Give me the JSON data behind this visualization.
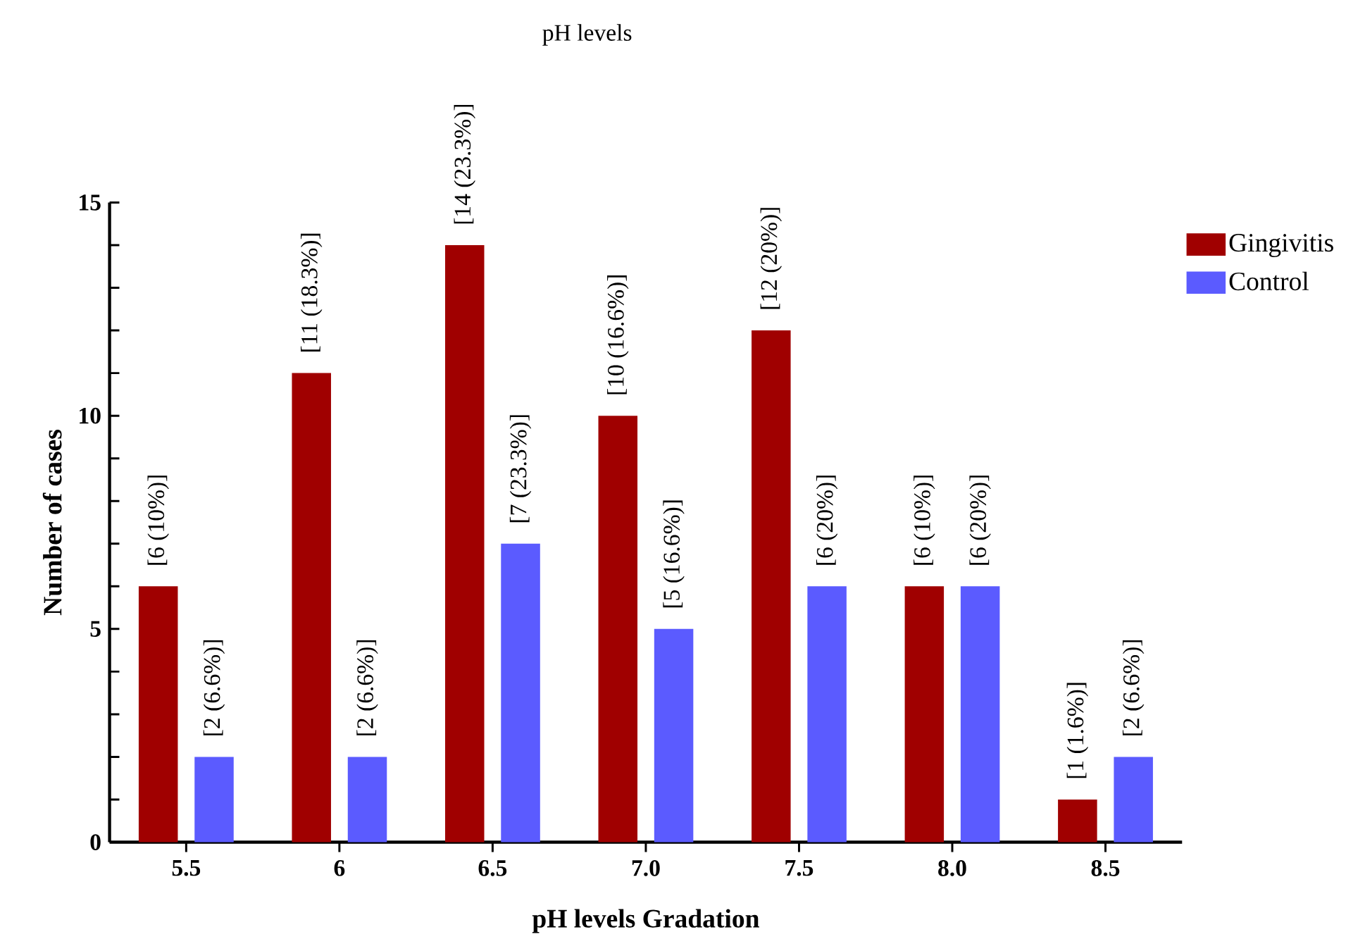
{
  "chart_data": {
    "type": "bar",
    "title": "pH levels",
    "xlabel": "pH levels Gradation",
    "ylabel": "Number of cases",
    "categories": [
      "5.5",
      "6",
      "6.5",
      "7.0",
      "7.5",
      "8.0",
      "8.5"
    ],
    "series": [
      {
        "name": "Gingivitis",
        "color": "#a00000",
        "values": [
          6,
          11,
          14,
          10,
          12,
          6,
          1
        ],
        "value_labels": [
          "[6 (10%)]",
          "[11 (18.3%)]",
          "[14 (23.3%)]",
          "[10 (16.6%)]",
          "[12 (20%)]",
          "[6 (10%)]",
          "[1 (1.6%)]"
        ]
      },
      {
        "name": "Control",
        "color": "#5b5bff",
        "values": [
          2,
          2,
          7,
          5,
          6,
          6,
          2
        ],
        "value_labels": [
          "[2 (6.6%)]",
          "[2 (6.6%)]",
          "[7 (23.3%)]",
          "[5 (16.6%)]",
          "[6 (20%)]",
          "[6 (20%)]",
          "[2 (6.6%)]"
        ]
      }
    ],
    "ylim": [
      0,
      15
    ],
    "yticks": [
      0,
      {
        "value": 1,
        "label": null
      },
      {
        "value": 2,
        "label": null
      },
      {
        "value": 3,
        "label": null
      },
      {
        "value": 4,
        "label": null
      },
      5,
      {
        "value": 6,
        "label": null
      },
      {
        "value": 7,
        "label": null
      },
      {
        "value": 8,
        "label": null
      },
      {
        "value": 9,
        "label": null
      },
      10,
      {
        "value": 11,
        "label": null
      },
      {
        "value": 12,
        "label": null
      },
      {
        "value": 13,
        "label": null
      },
      {
        "value": 14,
        "label": null
      },
      15
    ],
    "grid": false,
    "legend": "top right"
  }
}
